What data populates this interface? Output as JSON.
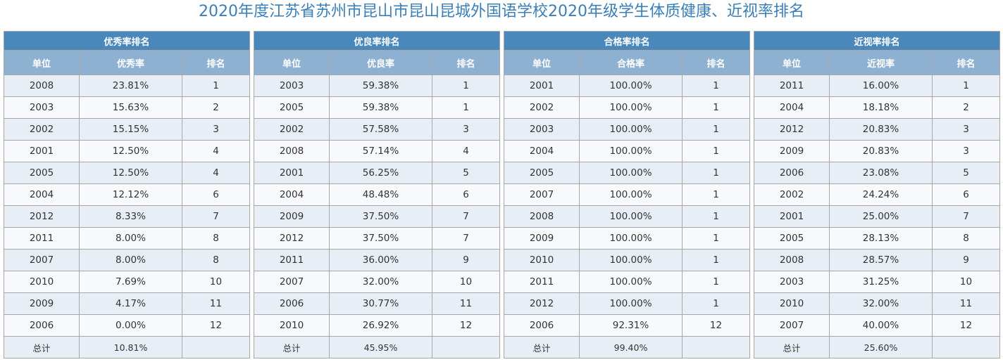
{
  "title": "2020年度江苏省苏州市昆山市昆山昆城外国语学校2020年级学生体质健康、近视率排名",
  "tables": [
    {
      "caption": "优秀率排名",
      "headers": [
        "单位",
        "优秀率",
        "排名"
      ],
      "rows": [
        [
          "2008",
          "23.81%",
          "1"
        ],
        [
          "2003",
          "15.63%",
          "2"
        ],
        [
          "2002",
          "15.15%",
          "3"
        ],
        [
          "2001",
          "12.50%",
          "4"
        ],
        [
          "2005",
          "12.50%",
          "4"
        ],
        [
          "2004",
          "12.12%",
          "6"
        ],
        [
          "2012",
          "8.33%",
          "7"
        ],
        [
          "2011",
          "8.00%",
          "8"
        ],
        [
          "2007",
          "8.00%",
          "8"
        ],
        [
          "2010",
          "7.69%",
          "10"
        ],
        [
          "2009",
          "4.17%",
          "11"
        ],
        [
          "2006",
          "0.00%",
          "12"
        ]
      ],
      "total": [
        "总计",
        "10.81%",
        ""
      ]
    },
    {
      "caption": "优良率排名",
      "headers": [
        "单位",
        "优良率",
        "排名"
      ],
      "rows": [
        [
          "2003",
          "59.38%",
          "1"
        ],
        [
          "2005",
          "59.38%",
          "1"
        ],
        [
          "2002",
          "57.58%",
          "3"
        ],
        [
          "2008",
          "57.14%",
          "4"
        ],
        [
          "2001",
          "56.25%",
          "5"
        ],
        [
          "2004",
          "48.48%",
          "6"
        ],
        [
          "2009",
          "37.50%",
          "7"
        ],
        [
          "2012",
          "37.50%",
          "7"
        ],
        [
          "2011",
          "36.00%",
          "9"
        ],
        [
          "2007",
          "32.00%",
          "10"
        ],
        [
          "2006",
          "30.77%",
          "11"
        ],
        [
          "2010",
          "26.92%",
          "12"
        ]
      ],
      "total": [
        "总计",
        "45.95%",
        ""
      ]
    },
    {
      "caption": "合格率排名",
      "headers": [
        "单位",
        "合格率",
        "排名"
      ],
      "rows": [
        [
          "2001",
          "100.00%",
          "1"
        ],
        [
          "2002",
          "100.00%",
          "1"
        ],
        [
          "2003",
          "100.00%",
          "1"
        ],
        [
          "2004",
          "100.00%",
          "1"
        ],
        [
          "2005",
          "100.00%",
          "1"
        ],
        [
          "2007",
          "100.00%",
          "1"
        ],
        [
          "2008",
          "100.00%",
          "1"
        ],
        [
          "2009",
          "100.00%",
          "1"
        ],
        [
          "2010",
          "100.00%",
          "1"
        ],
        [
          "2011",
          "100.00%",
          "1"
        ],
        [
          "2012",
          "100.00%",
          "1"
        ],
        [
          "2006",
          "92.31%",
          "12"
        ]
      ],
      "total": [
        "总计",
        "99.40%",
        ""
      ]
    },
    {
      "caption": "近视率排名",
      "headers": [
        "单位",
        "近视率",
        "排名"
      ],
      "rows": [
        [
          "2011",
          "16.00%",
          "1"
        ],
        [
          "2004",
          "18.18%",
          "2"
        ],
        [
          "2012",
          "20.83%",
          "3"
        ],
        [
          "2009",
          "20.83%",
          "3"
        ],
        [
          "2006",
          "23.08%",
          "5"
        ],
        [
          "2002",
          "24.24%",
          "6"
        ],
        [
          "2001",
          "25.00%",
          "7"
        ],
        [
          "2005",
          "28.13%",
          "8"
        ],
        [
          "2008",
          "28.57%",
          "9"
        ],
        [
          "2003",
          "31.25%",
          "10"
        ],
        [
          "2010",
          "32.00%",
          "11"
        ],
        [
          "2007",
          "40.00%",
          "12"
        ]
      ],
      "total": [
        "总计",
        "25.60%",
        ""
      ]
    }
  ]
}
